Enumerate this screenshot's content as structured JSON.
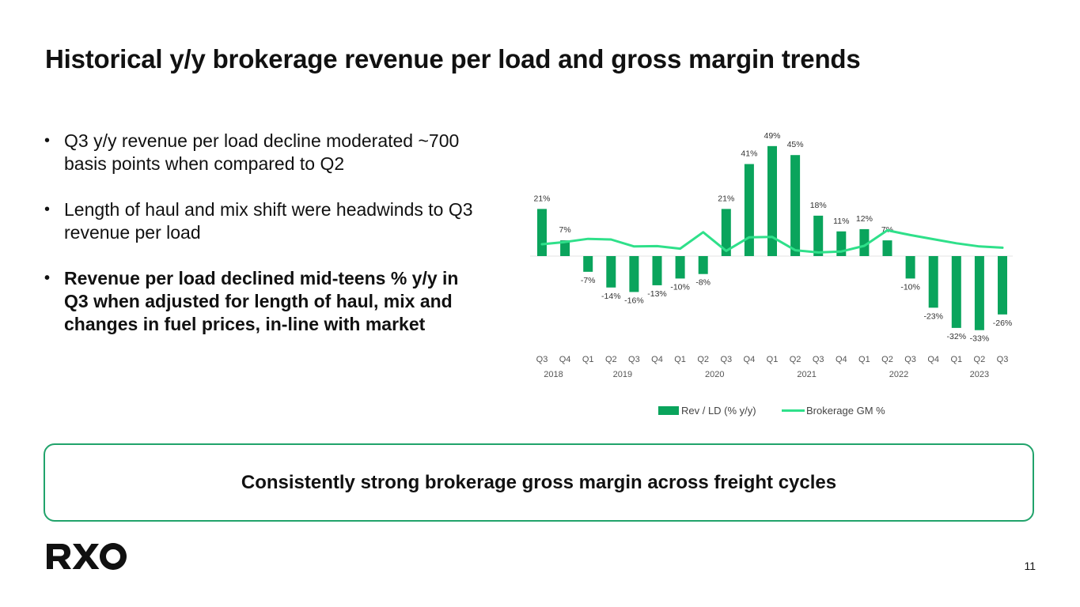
{
  "slide": {
    "title": "Historical y/y brokerage revenue per load and gross margin trends",
    "bullets": [
      "Q3 y/y revenue per load decline moderated ~700 basis points when compared to Q2",
      "Length of haul and mix shift were headwinds to Q3 revenue per load",
      "Revenue per load declined mid-teens % y/y in Q3 when adjusted for length of haul, mix and changes in fuel prices, in-line with market"
    ],
    "callout": "Consistently strong brokerage gross margin across freight cycles",
    "logo_text": "RXO",
    "page_number": "11"
  },
  "colors": {
    "bar": "#0aa45c",
    "line": "#2fe08a",
    "callout_border": "#21a36b",
    "axis_text": "#555555"
  },
  "chart_data": {
    "type": "bar",
    "title": "",
    "categories": [
      "Q3",
      "Q4",
      "Q1",
      "Q2",
      "Q3",
      "Q4",
      "Q1",
      "Q2",
      "Q3",
      "Q4",
      "Q1",
      "Q2",
      "Q3",
      "Q4",
      "Q1",
      "Q2",
      "Q3",
      "Q4",
      "Q1",
      "Q2",
      "Q3"
    ],
    "year_groups": [
      {
        "label": "2018",
        "start": 0,
        "end": 1
      },
      {
        "label": "2019",
        "start": 2,
        "end": 5
      },
      {
        "label": "2020",
        "start": 6,
        "end": 9
      },
      {
        "label": "2021",
        "start": 10,
        "end": 13
      },
      {
        "label": "2022",
        "start": 14,
        "end": 17
      },
      {
        "label": "2023",
        "start": 18,
        "end": 20
      }
    ],
    "series": [
      {
        "name": "Rev / LD (% y/y)",
        "type": "bar",
        "values": [
          21,
          7,
          -7,
          -14,
          -16,
          -13,
          -10,
          -8,
          21,
          41,
          49,
          45,
          18,
          11,
          12,
          7,
          -10,
          -23,
          -32,
          -33,
          -26
        ],
        "labels": [
          "21%",
          "7%",
          "-7%",
          "-14%",
          "-16%",
          "-13%",
          "-10%",
          "-8%",
          "21%",
          "41%",
          "49%",
          "45%",
          "18%",
          "11%",
          "12%",
          "7%",
          "-10%",
          "-23%",
          "-32%",
          "-33%",
          "-26%"
        ]
      },
      {
        "name": "Brokerage GM %",
        "type": "line",
        "values": [
          16.5,
          17.2,
          18.2,
          18.0,
          15.8,
          15.9,
          15.1,
          20.3,
          14.4,
          18.7,
          18.8,
          14.6,
          13.9,
          14.2,
          16.0,
          20.9,
          19.4,
          18.1,
          16.8,
          15.8,
          15.4
        ]
      }
    ],
    "ylim": [
      -40,
      55
    ],
    "legend": [
      "Rev / LD (% y/y)",
      "Brokerage GM %"
    ],
    "legend_position": "bottom-center"
  }
}
